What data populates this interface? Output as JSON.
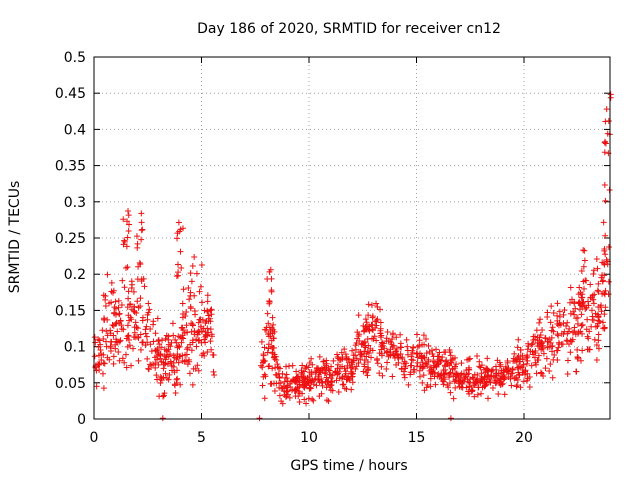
{
  "chart_data": {
    "type": "scatter",
    "title": "Day 186 of 2020, SRMTID for receiver cn12",
    "xlabel": "GPS time / hours",
    "ylabel": "SRMTID / TECUs",
    "xlim": [
      0,
      24
    ],
    "ylim": [
      0,
      0.5
    ],
    "xticks": [
      0,
      5,
      10,
      15,
      20
    ],
    "xtick_labels": [
      "0",
      "5",
      "10",
      "15",
      "20"
    ],
    "yticks": [
      0,
      0.05,
      0.1,
      0.15,
      0.2,
      0.25,
      0.3,
      0.35,
      0.4,
      0.45,
      0.5
    ],
    "ytick_labels": [
      "0",
      "0.05",
      "0.1",
      "0.15",
      "0.2",
      "0.25",
      "0.3",
      "0.35",
      "0.4",
      "0.45",
      "0.5"
    ],
    "grid": true,
    "marker": "+",
    "color": "#ee1111",
    "data_gap_hours": [
      5.6,
      7.7
    ],
    "envelope": {
      "description_free_series": true,
      "x": [
        0.0,
        0.5,
        1.0,
        1.5,
        2.0,
        2.5,
        3.0,
        3.5,
        4.0,
        4.5,
        5.0,
        5.5,
        7.8,
        8.2,
        8.6,
        9.0,
        9.5,
        10.0,
        10.5,
        11.0,
        11.5,
        12.0,
        12.5,
        13.0,
        13.5,
        14.0,
        14.5,
        15.0,
        15.5,
        16.0,
        16.5,
        17.0,
        17.5,
        18.0,
        18.5,
        19.0,
        19.5,
        20.0,
        20.5,
        21.0,
        21.5,
        22.0,
        22.5,
        23.0,
        23.5,
        24.0
      ],
      "center": [
        0.08,
        0.12,
        0.13,
        0.15,
        0.14,
        0.12,
        0.09,
        0.08,
        0.09,
        0.14,
        0.13,
        0.12,
        0.08,
        0.1,
        0.05,
        0.045,
        0.05,
        0.055,
        0.06,
        0.06,
        0.065,
        0.07,
        0.11,
        0.12,
        0.1,
        0.09,
        0.085,
        0.08,
        0.075,
        0.07,
        0.065,
        0.06,
        0.055,
        0.055,
        0.06,
        0.06,
        0.065,
        0.07,
        0.1,
        0.1,
        0.11,
        0.13,
        0.13,
        0.14,
        0.15,
        0.25
      ],
      "spread": [
        0.03,
        0.05,
        0.05,
        0.07,
        0.05,
        0.05,
        0.04,
        0.03,
        0.04,
        0.07,
        0.05,
        0.04,
        0.03,
        0.06,
        0.02,
        0.02,
        0.02,
        0.02,
        0.025,
        0.025,
        0.025,
        0.03,
        0.04,
        0.04,
        0.03,
        0.03,
        0.03,
        0.03,
        0.025,
        0.025,
        0.025,
        0.02,
        0.02,
        0.02,
        0.02,
        0.02,
        0.025,
        0.03,
        0.03,
        0.04,
        0.04,
        0.05,
        0.05,
        0.05,
        0.05,
        0.12
      ],
      "peaks": [
        [
          1.5,
          0.3
        ],
        [
          2.1,
          0.29
        ],
        [
          4.0,
          0.28
        ],
        [
          8.2,
          0.22
        ],
        [
          12.7,
          0.16
        ],
        [
          22.7,
          0.24
        ],
        [
          23.9,
          0.45
        ]
      ],
      "zeros": [
        3.2,
        7.7,
        16.6
      ]
    }
  }
}
